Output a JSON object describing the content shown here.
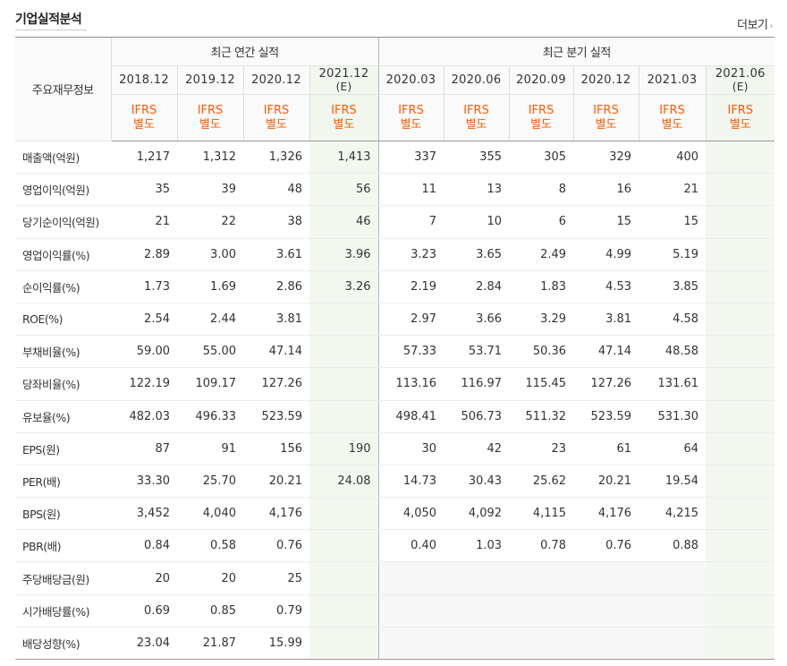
{
  "section_title": "기업실적분석",
  "more_link": "더보기",
  "header": {
    "row_head": "주요재무정보",
    "annual_group": "최근 연간 실적",
    "quarter_group": "최근 분기 실적",
    "periods": [
      {
        "label": "2018.12",
        "est": ""
      },
      {
        "label": "2019.12",
        "est": ""
      },
      {
        "label": "2020.12",
        "est": ""
      },
      {
        "label": "2021.12",
        "est": "(E)"
      },
      {
        "label": "2020.03",
        "est": ""
      },
      {
        "label": "2020.06",
        "est": ""
      },
      {
        "label": "2020.09",
        "est": ""
      },
      {
        "label": "2020.12",
        "est": ""
      },
      {
        "label": "2021.03",
        "est": ""
      },
      {
        "label": "2021.06",
        "est": "(E)"
      }
    ],
    "basis_line1": "IFRS",
    "basis_line2": "별도"
  },
  "rows": [
    {
      "label": "매출액(억원)",
      "values": [
        "1,217",
        "1,312",
        "1,326",
        "1,413",
        "337",
        "355",
        "305",
        "329",
        "400",
        ""
      ]
    },
    {
      "label": "영업이익(억원)",
      "values": [
        "35",
        "39",
        "48",
        "56",
        "11",
        "13",
        "8",
        "16",
        "21",
        ""
      ]
    },
    {
      "label": "당기순이익(억원)",
      "values": [
        "21",
        "22",
        "38",
        "46",
        "7",
        "10",
        "6",
        "15",
        "15",
        ""
      ]
    },
    {
      "label": "영업이익률(%)",
      "values": [
        "2.89",
        "3.00",
        "3.61",
        "3.96",
        "3.23",
        "3.65",
        "2.49",
        "4.99",
        "5.19",
        ""
      ]
    },
    {
      "label": "순이익률(%)",
      "values": [
        "1.73",
        "1.69",
        "2.86",
        "3.26",
        "2.19",
        "2.84",
        "1.83",
        "4.53",
        "3.85",
        ""
      ]
    },
    {
      "label": "ROE(%)",
      "values": [
        "2.54",
        "2.44",
        "3.81",
        "",
        "2.97",
        "3.66",
        "3.29",
        "3.81",
        "4.58",
        ""
      ]
    },
    {
      "label": "부채비율(%)",
      "values": [
        "59.00",
        "55.00",
        "47.14",
        "",
        "57.33",
        "53.71",
        "50.36",
        "47.14",
        "48.58",
        ""
      ]
    },
    {
      "label": "당좌비율(%)",
      "values": [
        "122.19",
        "109.17",
        "127.26",
        "",
        "113.16",
        "116.97",
        "115.45",
        "127.26",
        "131.61",
        ""
      ]
    },
    {
      "label": "유보율(%)",
      "values": [
        "482.03",
        "496.33",
        "523.59",
        "",
        "498.41",
        "506.73",
        "511.32",
        "523.59",
        "531.30",
        ""
      ]
    },
    {
      "label": "EPS(원)",
      "values": [
        "87",
        "91",
        "156",
        "190",
        "30",
        "42",
        "23",
        "61",
        "64",
        ""
      ]
    },
    {
      "label": "PER(배)",
      "values": [
        "33.30",
        "25.70",
        "20.21",
        "24.08",
        "14.73",
        "30.43",
        "25.62",
        "20.21",
        "19.54",
        ""
      ]
    },
    {
      "label": "BPS(원)",
      "values": [
        "3,452",
        "4,040",
        "4,176",
        "",
        "4,050",
        "4,092",
        "4,115",
        "4,176",
        "4,215",
        ""
      ]
    },
    {
      "label": "PBR(배)",
      "values": [
        "0.84",
        "0.58",
        "0.76",
        "",
        "0.40",
        "1.03",
        "0.78",
        "0.76",
        "0.88",
        ""
      ]
    },
    {
      "label": "주당배당금(원)",
      "values": [
        "20",
        "20",
        "25",
        "",
        "",
        "",
        "",
        "",
        "",
        ""
      ]
    },
    {
      "label": "시가배당률(%)",
      "values": [
        "0.69",
        "0.85",
        "0.79",
        "",
        "",
        "",
        "",
        "",
        "",
        ""
      ]
    },
    {
      "label": "배당성향(%)",
      "values": [
        "23.04",
        "21.87",
        "15.99",
        "",
        "",
        "",
        "",
        "",
        "",
        ""
      ]
    }
  ]
}
